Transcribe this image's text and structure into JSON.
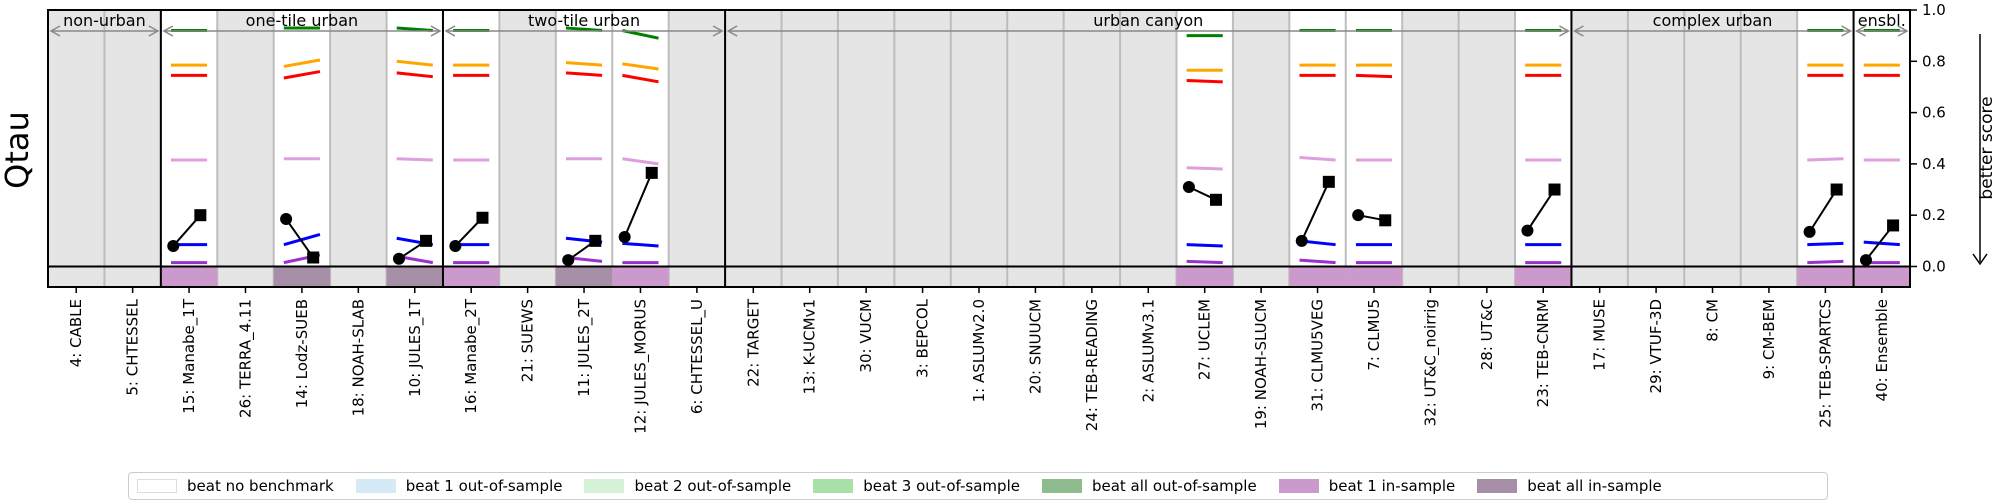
{
  "chart_data": {
    "type": "line",
    "ylabel": "Qtau",
    "right_label": "better score",
    "ylim": [
      -0.08,
      1.0
    ],
    "yticks": [
      "1.0",
      "0.8",
      "0.6",
      "0.4",
      "0.2",
      "0.0"
    ],
    "models": [
      "4: CABLE",
      "5: CHTESSEL",
      "15: Manabe_1T",
      "26: TERRA_4.11",
      "14: Lodz-SUEB",
      "18: NOAH-SLAB",
      "10: JULES_1T",
      "16: Manabe_2T",
      "21: SUEWS",
      "11: JULES_2T",
      "12: JULES_MORUS",
      "6: CHTESSEL_U",
      "22: TARGET",
      "13: K-UCMv1",
      "30: VUCM",
      "3: BEPCOL",
      "1: ASLUMv2.0",
      "20: SNUUCM",
      "24: TEB-READING",
      "2: ASLUMv3.1",
      "27: UCLEM",
      "19: NOAH-SLUCM",
      "31: CLMU5VEG",
      "7: CLMU5",
      "32: UT&C_noirrig",
      "28: UT&C",
      "23: TEB-CNRM",
      "17: MUSE",
      "29: VTUF-3D",
      "8: CM",
      "9: CM-BEM",
      "25: TEB-SPARTCS",
      "40: Ensemble"
    ],
    "groups": [
      {
        "label": "non-urban",
        "start": 0,
        "end": 2
      },
      {
        "label": "one-tile urban",
        "start": 2,
        "end": 7
      },
      {
        "label": "two-tile urban",
        "start": 7,
        "end": 12
      },
      {
        "label": "urban canyon",
        "start": 12,
        "end": 27
      },
      {
        "label": "complex urban",
        "start": 27,
        "end": 32
      },
      {
        "label": "ensbl.",
        "start": 32,
        "end": 33
      }
    ],
    "shading": [
      "none",
      "none",
      "beat 1 in-sample",
      "none",
      "beat all in-sample",
      "none",
      "beat all in-sample",
      "beat 1 in-sample",
      "none",
      "beat all in-sample",
      "beat 1 in-sample",
      "none",
      "none",
      "none",
      "none",
      "none",
      "none",
      "none",
      "none",
      "none",
      "beat 1 in-sample",
      "none",
      "beat 1 in-sample",
      "beat 1 in-sample",
      "none",
      "none",
      "beat 1 in-sample",
      "none",
      "none",
      "none",
      "none",
      "beat 1 in-sample",
      "beat 1 in-sample"
    ],
    "series": [
      {
        "color": "#008000",
        "values": [
          null,
          null,
          [
            0.92,
            0.92
          ],
          null,
          [
            0.93,
            0.93
          ],
          null,
          [
            0.93,
            0.92
          ],
          [
            0.92,
            0.92
          ],
          null,
          [
            0.93,
            0.92
          ],
          [
            0.92,
            0.89
          ],
          null,
          null,
          null,
          null,
          null,
          null,
          null,
          null,
          null,
          [
            0.9,
            0.9
          ],
          null,
          [
            0.92,
            0.92
          ],
          [
            0.92,
            0.92
          ],
          null,
          null,
          [
            0.92,
            0.92
          ],
          null,
          null,
          null,
          null,
          [
            0.92,
            0.92
          ],
          [
            0.92,
            0.92
          ]
        ]
      },
      {
        "color": "#ffa500",
        "values": [
          null,
          null,
          [
            0.785,
            0.785
          ],
          null,
          [
            0.78,
            0.805
          ],
          null,
          [
            0.8,
            0.785
          ],
          [
            0.785,
            0.785
          ],
          null,
          [
            0.795,
            0.785
          ],
          [
            0.79,
            0.77
          ],
          null,
          null,
          null,
          null,
          null,
          null,
          null,
          null,
          null,
          [
            0.765,
            0.765
          ],
          null,
          [
            0.785,
            0.785
          ],
          [
            0.785,
            0.785
          ],
          null,
          null,
          [
            0.785,
            0.785
          ],
          null,
          null,
          null,
          null,
          [
            0.785,
            0.785
          ],
          [
            0.785,
            0.785
          ]
        ]
      },
      {
        "color": "#ff0000",
        "values": [
          null,
          null,
          [
            0.745,
            0.745
          ],
          null,
          [
            0.735,
            0.76
          ],
          null,
          [
            0.755,
            0.74
          ],
          [
            0.745,
            0.745
          ],
          null,
          [
            0.755,
            0.745
          ],
          [
            0.745,
            0.72
          ],
          null,
          null,
          null,
          null,
          null,
          null,
          null,
          null,
          null,
          [
            0.725,
            0.72
          ],
          null,
          [
            0.745,
            0.745
          ],
          [
            0.745,
            0.74
          ],
          null,
          null,
          [
            0.745,
            0.745
          ],
          null,
          null,
          null,
          null,
          [
            0.745,
            0.745
          ],
          [
            0.745,
            0.745
          ]
        ]
      },
      {
        "color": "#dda0dd",
        "values": [
          null,
          null,
          [
            0.415,
            0.415
          ],
          null,
          [
            0.42,
            0.42
          ],
          null,
          [
            0.42,
            0.415
          ],
          [
            0.415,
            0.415
          ],
          null,
          [
            0.42,
            0.42
          ],
          [
            0.42,
            0.4
          ],
          null,
          null,
          null,
          null,
          null,
          null,
          null,
          null,
          null,
          [
            0.385,
            0.38
          ],
          null,
          [
            0.425,
            0.415
          ],
          [
            0.415,
            0.415
          ],
          null,
          null,
          [
            0.415,
            0.415
          ],
          null,
          null,
          null,
          null,
          [
            0.415,
            0.42
          ],
          [
            0.415,
            0.415
          ]
        ]
      },
      {
        "color": "#0000ff",
        "values": [
          null,
          null,
          [
            0.085,
            0.085
          ],
          null,
          [
            0.085,
            0.125
          ],
          null,
          [
            0.11,
            0.085
          ],
          [
            0.085,
            0.085
          ],
          null,
          [
            0.11,
            0.095
          ],
          [
            0.09,
            0.08
          ],
          null,
          null,
          null,
          null,
          null,
          null,
          null,
          null,
          null,
          [
            0.085,
            0.08
          ],
          null,
          [
            0.1,
            0.085
          ],
          [
            0.085,
            0.085
          ],
          null,
          null,
          [
            0.085,
            0.085
          ],
          null,
          null,
          null,
          null,
          [
            0.085,
            0.09
          ],
          [
            0.095,
            0.085
          ]
        ]
      },
      {
        "color": "#9932cc",
        "values": [
          null,
          null,
          [
            0.015,
            0.015
          ],
          null,
          [
            0.015,
            0.045
          ],
          null,
          [
            0.04,
            0.015
          ],
          [
            0.015,
            0.015
          ],
          null,
          [
            0.035,
            0.02
          ],
          [
            0.015,
            0.015
          ],
          null,
          null,
          null,
          null,
          null,
          null,
          null,
          null,
          null,
          [
            0.02,
            0.015
          ],
          null,
          [
            0.025,
            0.015
          ],
          [
            0.015,
            0.015
          ],
          null,
          null,
          [
            0.015,
            0.015
          ],
          null,
          null,
          null,
          null,
          [
            0.015,
            0.02
          ],
          [
            0.015,
            0.015
          ]
        ]
      }
    ],
    "markers": [
      {
        "model": 2,
        "circle": 0.08,
        "square": 0.2
      },
      {
        "model": 4,
        "circle": 0.185,
        "square": 0.035
      },
      {
        "model": 6,
        "circle": 0.03,
        "square": 0.1
      },
      {
        "model": 7,
        "circle": 0.08,
        "square": 0.19
      },
      {
        "model": 9,
        "circle": 0.025,
        "square": 0.1
      },
      {
        "model": 10,
        "circle": 0.115,
        "square": 0.365
      },
      {
        "model": 20,
        "circle": 0.31,
        "square": 0.26
      },
      {
        "model": 22,
        "circle": 0.1,
        "square": 0.33
      },
      {
        "model": 23,
        "circle": 0.2,
        "square": 0.18
      },
      {
        "model": 26,
        "circle": 0.14,
        "square": 0.3
      },
      {
        "model": 31,
        "circle": 0.135,
        "square": 0.3
      },
      {
        "model": 32,
        "circle": 0.025,
        "square": 0.16
      }
    ],
    "legend": [
      {
        "label": "beat no benchmark",
        "color": "#ffffff"
      },
      {
        "label": "beat 1 out-of-sample",
        "color": "#d4eaf7"
      },
      {
        "label": "beat 2 out-of-sample",
        "color": "#d6f2d6"
      },
      {
        "label": "beat 3 out-of-sample",
        "color": "#a8e0a8"
      },
      {
        "label": "beat all out-of-sample",
        "color": "#8fbc8f"
      },
      {
        "label": "beat 1 in-sample",
        "color": "#cc99cc"
      },
      {
        "label": "beat all in-sample",
        "color": "#a78fa8"
      }
    ]
  }
}
